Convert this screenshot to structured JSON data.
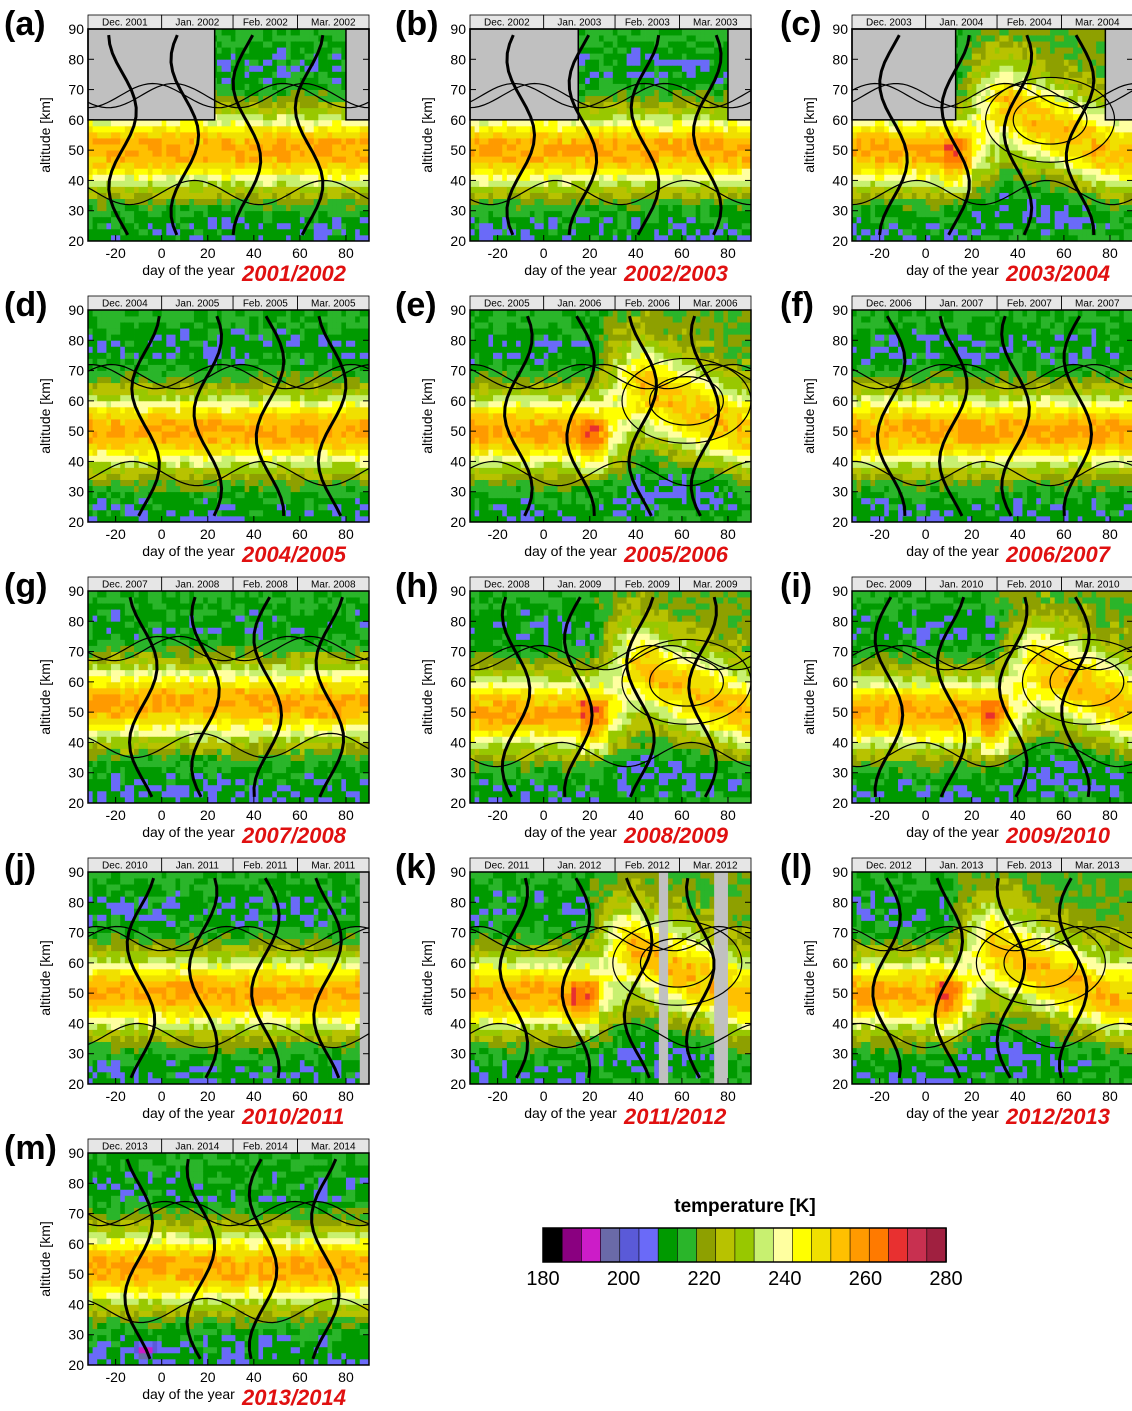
{
  "colorbar": {
    "title": "temperature  [K]",
    "min": 180,
    "max": 280,
    "tick_labels": [
      "180",
      "200",
      "220",
      "240",
      "260",
      "280"
    ],
    "colors": [
      "#000000",
      "#8a0080",
      "#cc1cc8",
      "#6a6aa8",
      "#5a5ad8",
      "#6a6af8",
      "#009a00",
      "#2ab52a",
      "#8ea000",
      "#b8c200",
      "#98c800",
      "#c8f070",
      "#ffffa0",
      "#ffff00",
      "#f0e000",
      "#ffc000",
      "#ff9a00",
      "#ff7a00",
      "#e83030",
      "#c83050",
      "#a02040"
    ]
  },
  "panel_axes": {
    "ylabel": "altitude [km]",
    "xlabel": "day of the year",
    "y_ticks": [
      "20",
      "30",
      "40",
      "50",
      "60",
      "70",
      "80",
      "90"
    ],
    "x_ticks": [
      "-20",
      "0",
      "20",
      "40",
      "60",
      "80"
    ]
  },
  "chart_data": [
    {
      "type": "heatmap",
      "letter": "(a)",
      "title": "2001/2002",
      "months": [
        "Dec. 2001",
        "Jan. 2002",
        "Feb. 2002",
        "Mar. 2002"
      ],
      "xlim": [
        -32,
        90
      ],
      "ylim": [
        20,
        90
      ],
      "xlabel": "day of the year",
      "ylabel": "altitude [km]",
      "stratopause_km": 50,
      "warming": "none",
      "no_data_above_60km_days": [
        [
          -32,
          23
        ],
        [
          80,
          90
        ]
      ]
    },
    {
      "type": "heatmap",
      "letter": "(b)",
      "title": "2002/2003",
      "months": [
        "Dec. 2002",
        "Jan. 2003",
        "Feb. 2003",
        "Mar. 2003"
      ],
      "xlim": [
        -32,
        90
      ],
      "ylim": [
        20,
        90
      ],
      "xlabel": "day of the year",
      "ylabel": "altitude [km]",
      "stratopause_km": 50,
      "warming": "none",
      "no_data_above_60km_days": [
        [
          -32,
          15
        ],
        [
          80,
          90
        ]
      ]
    },
    {
      "type": "heatmap",
      "letter": "(c)",
      "title": "2003/2004",
      "months": [
        "Dec. 2003",
        "Jan. 2004",
        "Feb. 2004",
        "Mar. 2004"
      ],
      "xlim": [
        -32,
        90
      ],
      "ylim": [
        20,
        90
      ],
      "xlabel": "day of the year",
      "ylabel": "altitude [km]",
      "stratopause_km": 50,
      "warming": "elevated stratopause",
      "no_data_above_60km_days": [
        [
          -32,
          13
        ],
        [
          78,
          90
        ]
      ]
    },
    {
      "type": "heatmap",
      "letter": "(d)",
      "title": "2004/2005",
      "months": [
        "Dec. 2004",
        "Jan. 2005",
        "Feb. 2005",
        "Mar. 2005"
      ],
      "xlim": [
        -32,
        90
      ],
      "ylim": [
        20,
        90
      ],
      "xlabel": "day of the year",
      "ylabel": "altitude [km]",
      "stratopause_km": 50,
      "warming": "none"
    },
    {
      "type": "heatmap",
      "letter": "(e)",
      "title": "2005/2006",
      "months": [
        "Dec. 2005",
        "Jan. 2006",
        "Feb. 2006",
        "Mar. 2006"
      ],
      "xlim": [
        -32,
        90
      ],
      "ylim": [
        20,
        90
      ],
      "xlabel": "day of the year",
      "ylabel": "altitude [km]",
      "stratopause_km": 50,
      "warming": "elevated stratopause",
      "warming_day": 22
    },
    {
      "type": "heatmap",
      "letter": "(f)",
      "title": "2006/2007",
      "months": [
        "Dec. 2006",
        "Jan. 2007",
        "Feb. 2007",
        "Mar. 2007"
      ],
      "xlim": [
        -32,
        90
      ],
      "ylim": [
        20,
        90
      ],
      "xlabel": "day of the year",
      "ylabel": "altitude [km]",
      "stratopause_km": 50,
      "warming": "none"
    },
    {
      "type": "heatmap",
      "letter": "(g)",
      "title": "2007/2008",
      "months": [
        "Dec. 2007",
        "Jan. 2008",
        "Feb. 2008",
        "Mar. 2008"
      ],
      "xlim": [
        -32,
        90
      ],
      "ylim": [
        20,
        90
      ],
      "xlabel": "day of the year",
      "ylabel": "altitude [km]",
      "stratopause_km": 53,
      "warming": "none"
    },
    {
      "type": "heatmap",
      "letter": "(h)",
      "title": "2008/2009",
      "months": [
        "Dec. 2008",
        "Jan. 2009",
        "Feb. 2009",
        "Mar. 2009"
      ],
      "xlim": [
        -32,
        90
      ],
      "ylim": [
        20,
        90
      ],
      "xlabel": "day of the year",
      "ylabel": "altitude [km]",
      "stratopause_km": 50,
      "warming": "elevated stratopause",
      "warming_day": 22
    },
    {
      "type": "heatmap",
      "letter": "(i)",
      "title": "2009/2010",
      "months": [
        "Dec. 2009",
        "Jan. 2010",
        "Feb. 2010",
        "Mar. 2010"
      ],
      "xlim": [
        -32,
        90
      ],
      "ylim": [
        20,
        90
      ],
      "xlabel": "day of the year",
      "ylabel": "altitude [km]",
      "stratopause_km": 50,
      "warming": "elevated stratopause",
      "warming_day": 30
    },
    {
      "type": "heatmap",
      "letter": "(j)",
      "title": "2010/2011",
      "months": [
        "Dec. 2010",
        "Jan. 2011",
        "Feb. 2011",
        "Mar. 2011"
      ],
      "xlim": [
        -32,
        90
      ],
      "ylim": [
        20,
        90
      ],
      "xlabel": "day of the year",
      "ylabel": "altitude [km]",
      "stratopause_km": 50,
      "warming": "none",
      "gap_days": [
        [
          86,
          90
        ]
      ]
    },
    {
      "type": "heatmap",
      "letter": "(k)",
      "title": "2011/2012",
      "months": [
        "Dec. 2011",
        "Jan. 2012",
        "Feb. 2012",
        "Mar. 2012"
      ],
      "xlim": [
        -32,
        90
      ],
      "ylim": [
        20,
        90
      ],
      "xlabel": "day of the year",
      "ylabel": "altitude [km]",
      "stratopause_km": 50,
      "warming": "elevated stratopause",
      "warming_day": 18,
      "gap_days": [
        [
          50,
          54
        ],
        [
          74,
          80
        ]
      ]
    },
    {
      "type": "heatmap",
      "letter": "(l)",
      "title": "2012/2013",
      "months": [
        "Dec. 2012",
        "Jan. 2013",
        "Feb. 2013",
        "Mar. 2013"
      ],
      "xlim": [
        -32,
        90
      ],
      "ylim": [
        20,
        90
      ],
      "xlabel": "day of the year",
      "ylabel": "altitude [km]",
      "stratopause_km": 50,
      "warming": "elevated stratopause",
      "warming_day": 10
    },
    {
      "type": "heatmap",
      "letter": "(m)",
      "title": "2013/2014",
      "months": [
        "Dec. 2013",
        "Jan. 2014",
        "Feb. 2014",
        "Mar. 2014"
      ],
      "xlim": [
        -32,
        90
      ],
      "ylim": [
        20,
        90
      ],
      "xlabel": "day of the year",
      "ylabel": "altitude [km]",
      "stratopause_km": 52,
      "warming": "none",
      "blob": {
        "day": -7,
        "km": 25
      }
    }
  ]
}
